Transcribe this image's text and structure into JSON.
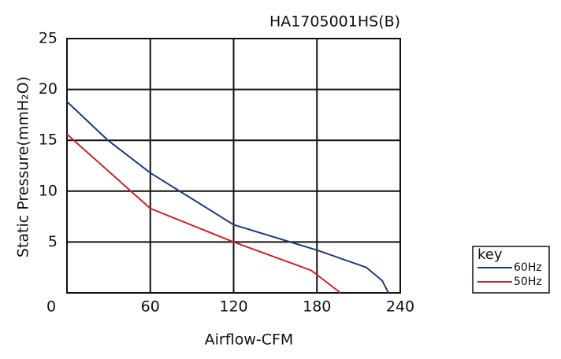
{
  "chart_data": {
    "type": "line",
    "title": "HA1705001HS(B)",
    "x_label": "Airflow-CFM",
    "y_label": "Static Pressure(mmH₂O)",
    "legend_title": "key",
    "xlim": [
      0,
      240
    ],
    "xticks": [
      0,
      60,
      120,
      180,
      240
    ],
    "ylim": [
      0,
      25
    ],
    "yticks": [
      5,
      10,
      15,
      20,
      25
    ],
    "grid": true,
    "series": [
      {
        "name": "60Hz",
        "color": "#1f3a7a",
        "x": [
          0,
          29.5,
          60,
          120,
          180,
          215.6,
          227,
          231.5
        ],
        "values": [
          18.8,
          15.0,
          11.8,
          6.7,
          4.2,
          2.5,
          1.2,
          0
        ]
      },
      {
        "name": "50Hz",
        "color": "#c8232c",
        "x": [
          0,
          60,
          120,
          176,
          197
        ],
        "values": [
          15.6,
          8.3,
          5.0,
          2.2,
          0
        ]
      }
    ]
  }
}
